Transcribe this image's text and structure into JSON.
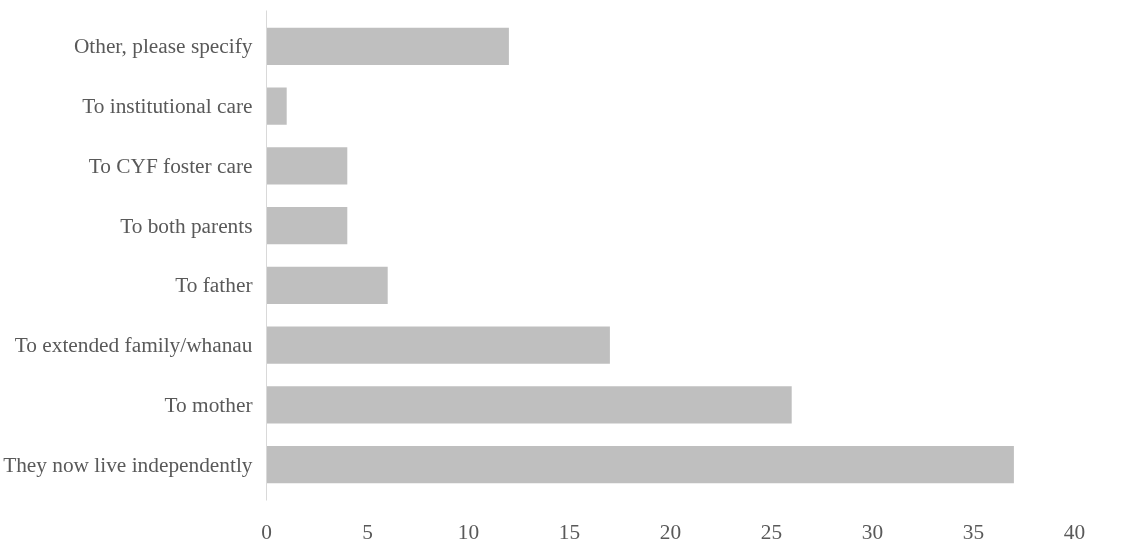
{
  "chart_data": {
    "type": "bar",
    "orientation": "horizontal",
    "categories": [
      "Other, please specify",
      "To institutional care",
      "To CYF foster care",
      "To both parents",
      "To father",
      "To extended family/whanau",
      "To mother",
      "They now live independently"
    ],
    "values": [
      12,
      1,
      4,
      4,
      6,
      17,
      26,
      37
    ],
    "color": "#bfbfbf",
    "xlim": [
      0,
      40
    ],
    "xticks": [
      0,
      5,
      10,
      15,
      20,
      25,
      30,
      35,
      40
    ],
    "grid": false
  }
}
